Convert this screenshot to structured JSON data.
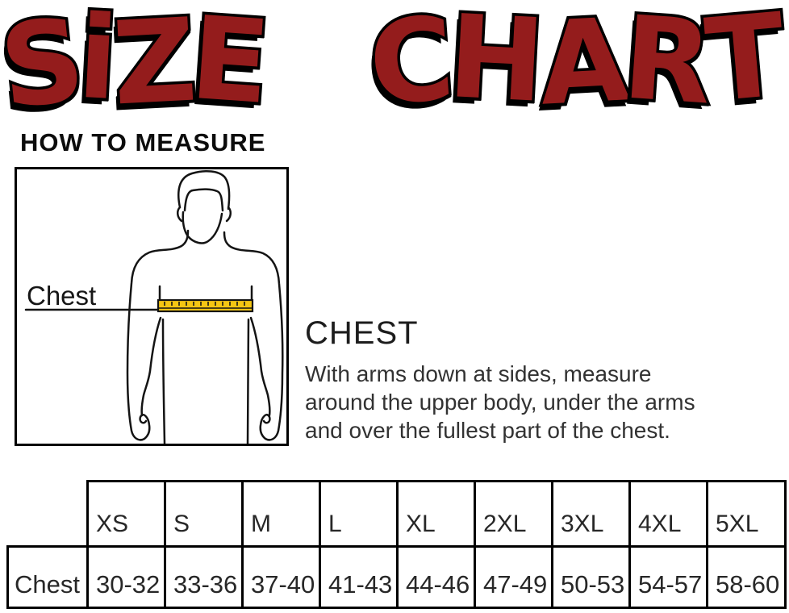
{
  "title": {
    "text": "SiZE CHART",
    "fill_color": "#941c1c",
    "outline_color": "#000000"
  },
  "how_to_measure": {
    "heading": "HOW TO MEASURE"
  },
  "diagram": {
    "chest_label": "Chest",
    "tape_color": "#f4c613",
    "outline_color": "#141414"
  },
  "chest_section": {
    "heading": "CHEST",
    "description": "With arms down at sides, measure around the upper body, under the arms and over the fullest part of the chest."
  },
  "size_table": {
    "row_label": "Chest",
    "columns": [
      "XS",
      "S",
      "M",
      "L",
      "XL",
      "2XL",
      "3XL",
      "4XL",
      "5XL"
    ],
    "chest_ranges": [
      "30-32",
      "33-36",
      "37-40",
      "41-43",
      "44-46",
      "47-49",
      "50-53",
      "54-57",
      "58-60"
    ]
  },
  "chart_data": {
    "type": "table",
    "title": "SiZE CHART",
    "categories": [
      "XS",
      "S",
      "M",
      "L",
      "XL",
      "2XL",
      "3XL",
      "4XL",
      "5XL"
    ],
    "series": [
      {
        "name": "Chest",
        "values": [
          "30-32",
          "33-36",
          "37-40",
          "41-43",
          "44-46",
          "47-49",
          "50-53",
          "54-57",
          "58-60"
        ]
      }
    ]
  }
}
